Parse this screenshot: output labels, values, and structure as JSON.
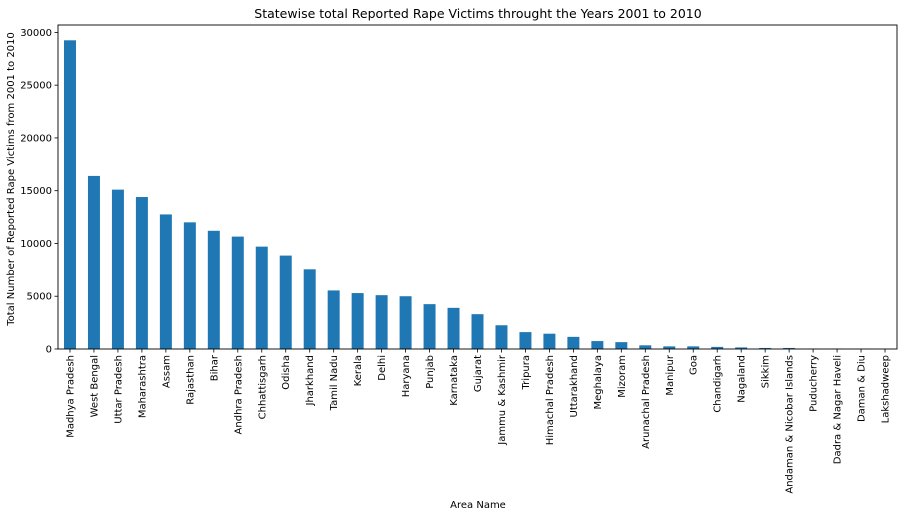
{
  "chart_data": {
    "type": "bar",
    "title": "Statewise total Reported Rape Victims throught the Years 2001 to 2010",
    "xlabel": "Area Name",
    "ylabel": "Total Number of Reported Rape Victims from 2001 to 2010",
    "ylim": [
      0,
      30700
    ],
    "yticks": [
      0,
      5000,
      10000,
      15000,
      20000,
      25000,
      30000
    ],
    "grid": false,
    "legend": "none",
    "bar_color": "#1f77b4",
    "categories": [
      "Madhya Pradesh",
      "West Bengal",
      "Uttar Pradesh",
      "Maharashtra",
      "Assam",
      "Rajasthan",
      "Bihar",
      "Andhra Pradesh",
      "Chhattisgarh",
      "Odisha",
      "Jharkhand",
      "Tamil Nadu",
      "Kerala",
      "Delhi",
      "Haryana",
      "Punjab",
      "Karnataka",
      "Gujarat",
      "Jammu & Kashmir",
      "Tripura",
      "Himachal Pradesh",
      "Uttarakhand",
      "Meghalaya",
      "Mizoram",
      "Arunachal Pradesh",
      "Manipur",
      "Goa",
      "Chandigarh",
      "Nagaland",
      "Sikkim",
      "Andaman & Nicobar Islands",
      "Puducherry",
      "Dadra & Nagar Haveli",
      "Daman & Diu",
      "Lakshadweep"
    ],
    "values": [
      29250,
      16400,
      15100,
      14400,
      12750,
      12000,
      11200,
      10650,
      9700,
      8850,
      7550,
      5550,
      5300,
      5100,
      5000,
      4250,
      3900,
      3300,
      2250,
      1600,
      1450,
      1150,
      750,
      650,
      350,
      250,
      250,
      200,
      150,
      100,
      100,
      30,
      30,
      20,
      5
    ]
  }
}
